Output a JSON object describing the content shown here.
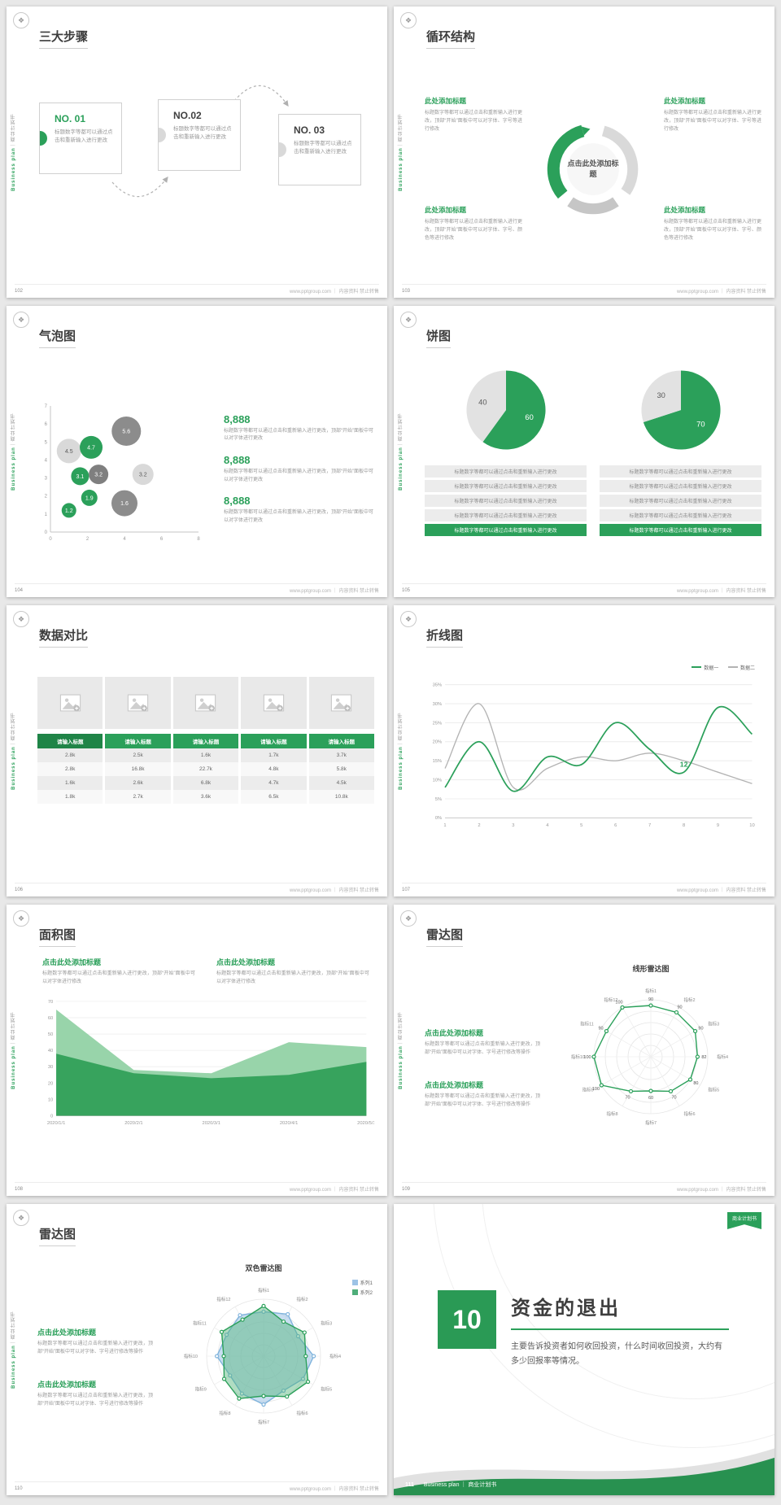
{
  "colors": {
    "accent": "#2ba05a",
    "accent_dark": "#1f8447",
    "light_green": "#8fd0a3",
    "gray_dark": "#595959",
    "gray_mid": "#9a9a9a",
    "gray_light": "#d9d9d9",
    "blue_light": "#9dc3e6"
  },
  "common": {
    "sidebar_en": "Business plan",
    "sidebar_zh": "｜商业计划书",
    "footer_right": "www.pptgroup.com ｜ 内容资料 禁止转售",
    "logo_glyph": "❖"
  },
  "slides": {
    "s102": {
      "number": "102",
      "title": "三大步骤",
      "steps": [
        {
          "no": "NO. 01",
          "text": "标题数字等都可以通过点击和重新输入进行更改"
        },
        {
          "no": "NO.02",
          "text": "标题数字等都可以通过点击和重新输入进行更改"
        },
        {
          "no": "NO. 03",
          "text": "标题数字等都可以通过点击和重新输入进行更改"
        }
      ]
    },
    "s103": {
      "number": "103",
      "title": "循环结构",
      "center_label": "点击此处添加标题",
      "blocks": [
        {
          "heading": "此处添加标题",
          "text": "标题数字等都可以通过点击和重新输入进行更改，顶部“开始”面板中可以对字体、字号等进行修改"
        },
        {
          "heading": "此处添加标题",
          "text": "标题数字等都可以通过点击和重新输入进行更改，顶部“开始”面板中可以对字体、字号、颜色等进行修改"
        },
        {
          "heading": "此处添加标题",
          "text": "标题数字等都可以通过点击和重新输入进行更改，顶部“开始”面板中可以对字体、字号等进行修改"
        },
        {
          "heading": "此处添加标题",
          "text": "标题数字等都可以通过点击和重新输入进行更改，顶部“开始”面板中可以对字体、字号、颜色等进行修改"
        }
      ]
    },
    "s104": {
      "number": "104",
      "title": "气泡图",
      "stats": [
        {
          "value": "8,888",
          "text": "标题数字等都可以通过点击和重新输入进行更改，顶部“开始”面板中可以对字体进行更改"
        },
        {
          "value": "8,888",
          "text": "标题数字等都可以通过点击和重新输入进行更改，顶部“开始”面板中可以对字体进行更改"
        },
        {
          "value": "8,888",
          "text": "标题数字等都可以通过点击和重新输入进行更改，顶部“开始”面板中可以对字体进行更改"
        }
      ]
    },
    "s105": {
      "number": "105",
      "title": "饼图",
      "caption_gray": "标题数字等都可以通过点击和重新输入进行更改",
      "caption_green": "标题数字等都可以通过点击和重新输入进行更改"
    },
    "s106": {
      "number": "106",
      "title": "数据对比",
      "table": {
        "headers": [
          "请输入标题",
          "请输入标题",
          "请输入标题",
          "请输入标题",
          "请输入标题"
        ],
        "rows": [
          [
            "2.8k",
            "2.5k",
            "1.6k",
            "1.7k",
            "3.7k"
          ],
          [
            "2.8k",
            "16.8k",
            "22.7k",
            "4.8k",
            "5.8k"
          ],
          [
            "1.6k",
            "2.6k",
            "6.8k",
            "4.7k",
            "4.5k"
          ],
          [
            "1.8k",
            "2.7k",
            "3.6k",
            "6.5k",
            "10.8k"
          ]
        ]
      }
    },
    "s107": {
      "number": "107",
      "title": "折线图"
    },
    "s108": {
      "number": "108",
      "title": "面积图",
      "blocks": [
        {
          "heading": "点击此处添加标题",
          "text": "标题数字等都可以通过点击和重新输入进行更改，顶部“开始”面板中可以对字体进行修改"
        },
        {
          "heading": "点击此处添加标题",
          "text": "标题数字等都可以通过点击和重新输入进行更改，顶部“开始”面板中可以对字体进行修改"
        }
      ]
    },
    "s109": {
      "number": "109",
      "title": "雷达图",
      "chart_title": "线形雷达图",
      "blocks": [
        {
          "heading": "点击此处添加标题",
          "text": "标题数字等都可以通过点击和重新输入进行更改，顶部“开始”面板中可以对字体、字号进行修改等操作"
        },
        {
          "heading": "点击此处添加标题",
          "text": "标题数字等都可以通过点击和重新输入进行更改，顶部“开始”面板中可以对字体、字号进行修改等操作"
        }
      ]
    },
    "s110": {
      "number": "110",
      "title": "雷达图",
      "chart_title": "双色雷达图",
      "blocks": [
        {
          "heading": "点击此处添加标题",
          "text": "标题数字等都可以通过点击和重新输入进行更改，顶部“开始”面板中可以对字体、字号进行修改等操作"
        },
        {
          "heading": "点击此处添加标题",
          "text": "标题数字等都可以通过点击和重新输入进行更改，顶部“开始”面板中可以对字体、字号进行修改等操作"
        }
      ]
    },
    "s111": {
      "number": "111",
      "big_number": "10",
      "title": "资金的退出",
      "body": "主要告诉投资者如何收回投资，什么时间收回投资，大约有多少回报率等情况。",
      "badge": "商业计划书",
      "footer_brand": "Business plan ｜ 商业计划书"
    }
  },
  "chart_data": [
    {
      "id": "bubble104",
      "type": "scatter",
      "title": "气泡图",
      "xlim": [
        0,
        8
      ],
      "ylim": [
        0,
        7
      ],
      "x_ticks": [
        0,
        2,
        4,
        6,
        8
      ],
      "y_ticks": [
        0,
        1,
        2,
        3,
        4,
        5,
        6,
        7
      ],
      "points": [
        {
          "x": 1.0,
          "y": 4.5,
          "r": 15,
          "label": "4.5",
          "color": "#d9d9d9",
          "text": "#595959"
        },
        {
          "x": 2.2,
          "y": 4.7,
          "r": 14,
          "label": "4.7",
          "color": "#2ba05a",
          "text": "#ffffff"
        },
        {
          "x": 4.1,
          "y": 5.6,
          "r": 18,
          "label": "5.6",
          "color": "#8c8c8c",
          "text": "#ffffff"
        },
        {
          "x": 1.6,
          "y": 3.1,
          "r": 11,
          "label": "3.1",
          "color": "#2ba05a",
          "text": "#ffffff"
        },
        {
          "x": 2.6,
          "y": 3.2,
          "r": 12,
          "label": "3.2",
          "color": "#7f7f7f",
          "text": "#ffffff"
        },
        {
          "x": 5.0,
          "y": 3.2,
          "r": 13,
          "label": "3.2",
          "color": "#d9d9d9",
          "text": "#595959"
        },
        {
          "x": 2.1,
          "y": 1.9,
          "r": 10,
          "label": "1.9",
          "color": "#2ba05a",
          "text": "#ffffff"
        },
        {
          "x": 1.0,
          "y": 1.2,
          "r": 9,
          "label": "1.2",
          "color": "#2ba05a",
          "text": "#ffffff"
        },
        {
          "x": 4.0,
          "y": 1.6,
          "r": 16,
          "label": "1.6",
          "color": "#8c8c8c",
          "text": "#ffffff"
        }
      ]
    },
    {
      "id": "pie105a",
      "type": "pie",
      "slices": [
        {
          "label": "60",
          "value": 60,
          "color": "#2ba05a",
          "text": "#ffffff"
        },
        {
          "label": "40",
          "value": 40,
          "color": "#e2e2e2",
          "text": "#595959"
        }
      ]
    },
    {
      "id": "pie105b",
      "type": "pie",
      "slices": [
        {
          "label": "70",
          "value": 70,
          "color": "#2ba05a",
          "text": "#ffffff"
        },
        {
          "label": "30",
          "value": 30,
          "color": "#e2e2e2",
          "text": "#595959"
        }
      ]
    },
    {
      "id": "line107",
      "type": "line",
      "categories": [
        "1",
        "2",
        "3",
        "4",
        "5",
        "6",
        "7",
        "8",
        "9",
        "10"
      ],
      "y_ticks": [
        "0%",
        "5%",
        "10%",
        "15%",
        "20%",
        "25%",
        "30%",
        "35%"
      ],
      "ymax": 35,
      "series": [
        {
          "name": "数据一",
          "color": "#2ba05a",
          "values": [
            8,
            20,
            7,
            16,
            14,
            25,
            18,
            12,
            29,
            22
          ]
        },
        {
          "name": "数据二",
          "color": "#b3b3b3",
          "values": [
            13,
            30,
            8,
            13,
            16,
            15,
            17,
            15,
            12,
            9
          ]
        }
      ],
      "point_label": {
        "series": 0,
        "index": 7,
        "text": "12"
      }
    },
    {
      "id": "area108",
      "type": "area",
      "categories": [
        "2020/1/1",
        "2020/2/1",
        "2020/3/1",
        "2020/4/1",
        "2020/5/1"
      ],
      "y_ticks": [
        0,
        10,
        20,
        30,
        40,
        50,
        60,
        70
      ],
      "ymax": 70,
      "series": [
        {
          "name": "系列1",
          "color": "#8fd0a3",
          "values": [
            65,
            28,
            26,
            45,
            42
          ]
        },
        {
          "name": "系列2",
          "color": "#2f9e57",
          "values": [
            38,
            26,
            23,
            25,
            33
          ]
        }
      ]
    },
    {
      "id": "radar109",
      "type": "radar",
      "title": "线形雷达图",
      "max": 100,
      "categories": [
        "指标1",
        "指标2",
        "指标3",
        "指标4",
        "指标5",
        "指标6",
        "指标7",
        "指标8",
        "指标9",
        "指标10",
        "指标11",
        "指标12"
      ],
      "series": [
        {
          "name": "数据",
          "color": "#2ba05a",
          "fill": "none",
          "markers": true,
          "labels": true,
          "values": [
            90,
            90,
            90,
            82,
            80,
            70,
            60,
            70,
            100,
            100,
            90,
            100
          ]
        }
      ]
    },
    {
      "id": "radar110",
      "type": "radar",
      "title": "双色雷达图",
      "max": 100,
      "categories": [
        "指标1",
        "指标2",
        "指标3",
        "指标4",
        "指标5",
        "指标6",
        "指标7",
        "指标8",
        "指标9",
        "指标10",
        "指标11",
        "指标12"
      ],
      "series": [
        {
          "name": "系列1",
          "color": "#7fb3dc",
          "fill": "rgba(157,195,230,0.55)",
          "markers": true,
          "labels": false,
          "values": [
            78,
            85,
            70,
            88,
            80,
            70,
            85,
            76,
            68,
            82,
            75,
            83
          ]
        },
        {
          "name": "系列2",
          "color": "#2ba05a",
          "fill": "rgba(80,180,120,0.45)",
          "markers": true,
          "labels": false,
          "values": [
            88,
            70,
            83,
            74,
            90,
            82,
            70,
            86,
            80,
            70,
            85,
            74
          ]
        }
      ]
    }
  ]
}
